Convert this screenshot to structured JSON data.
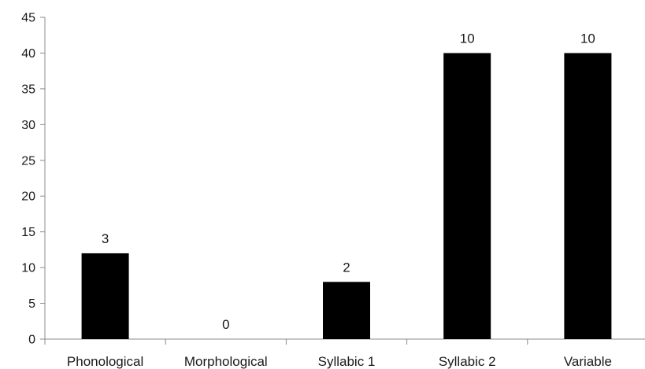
{
  "chart_data": {
    "type": "bar",
    "categories": [
      "Phonological",
      "Morphological",
      "Syllabic 1",
      "Syllabic 2",
      "Variable"
    ],
    "values": [
      12,
      0,
      8,
      40,
      40
    ],
    "data_labels": [
      "3",
      "0",
      "2",
      "10",
      "10"
    ],
    "ylim": [
      0,
      45
    ],
    "yticks": [
      0,
      5,
      10,
      15,
      20,
      25,
      30,
      35,
      40,
      45
    ],
    "grid": false,
    "bar_color": "#000000",
    "axis_color": "#8c8c8c"
  }
}
